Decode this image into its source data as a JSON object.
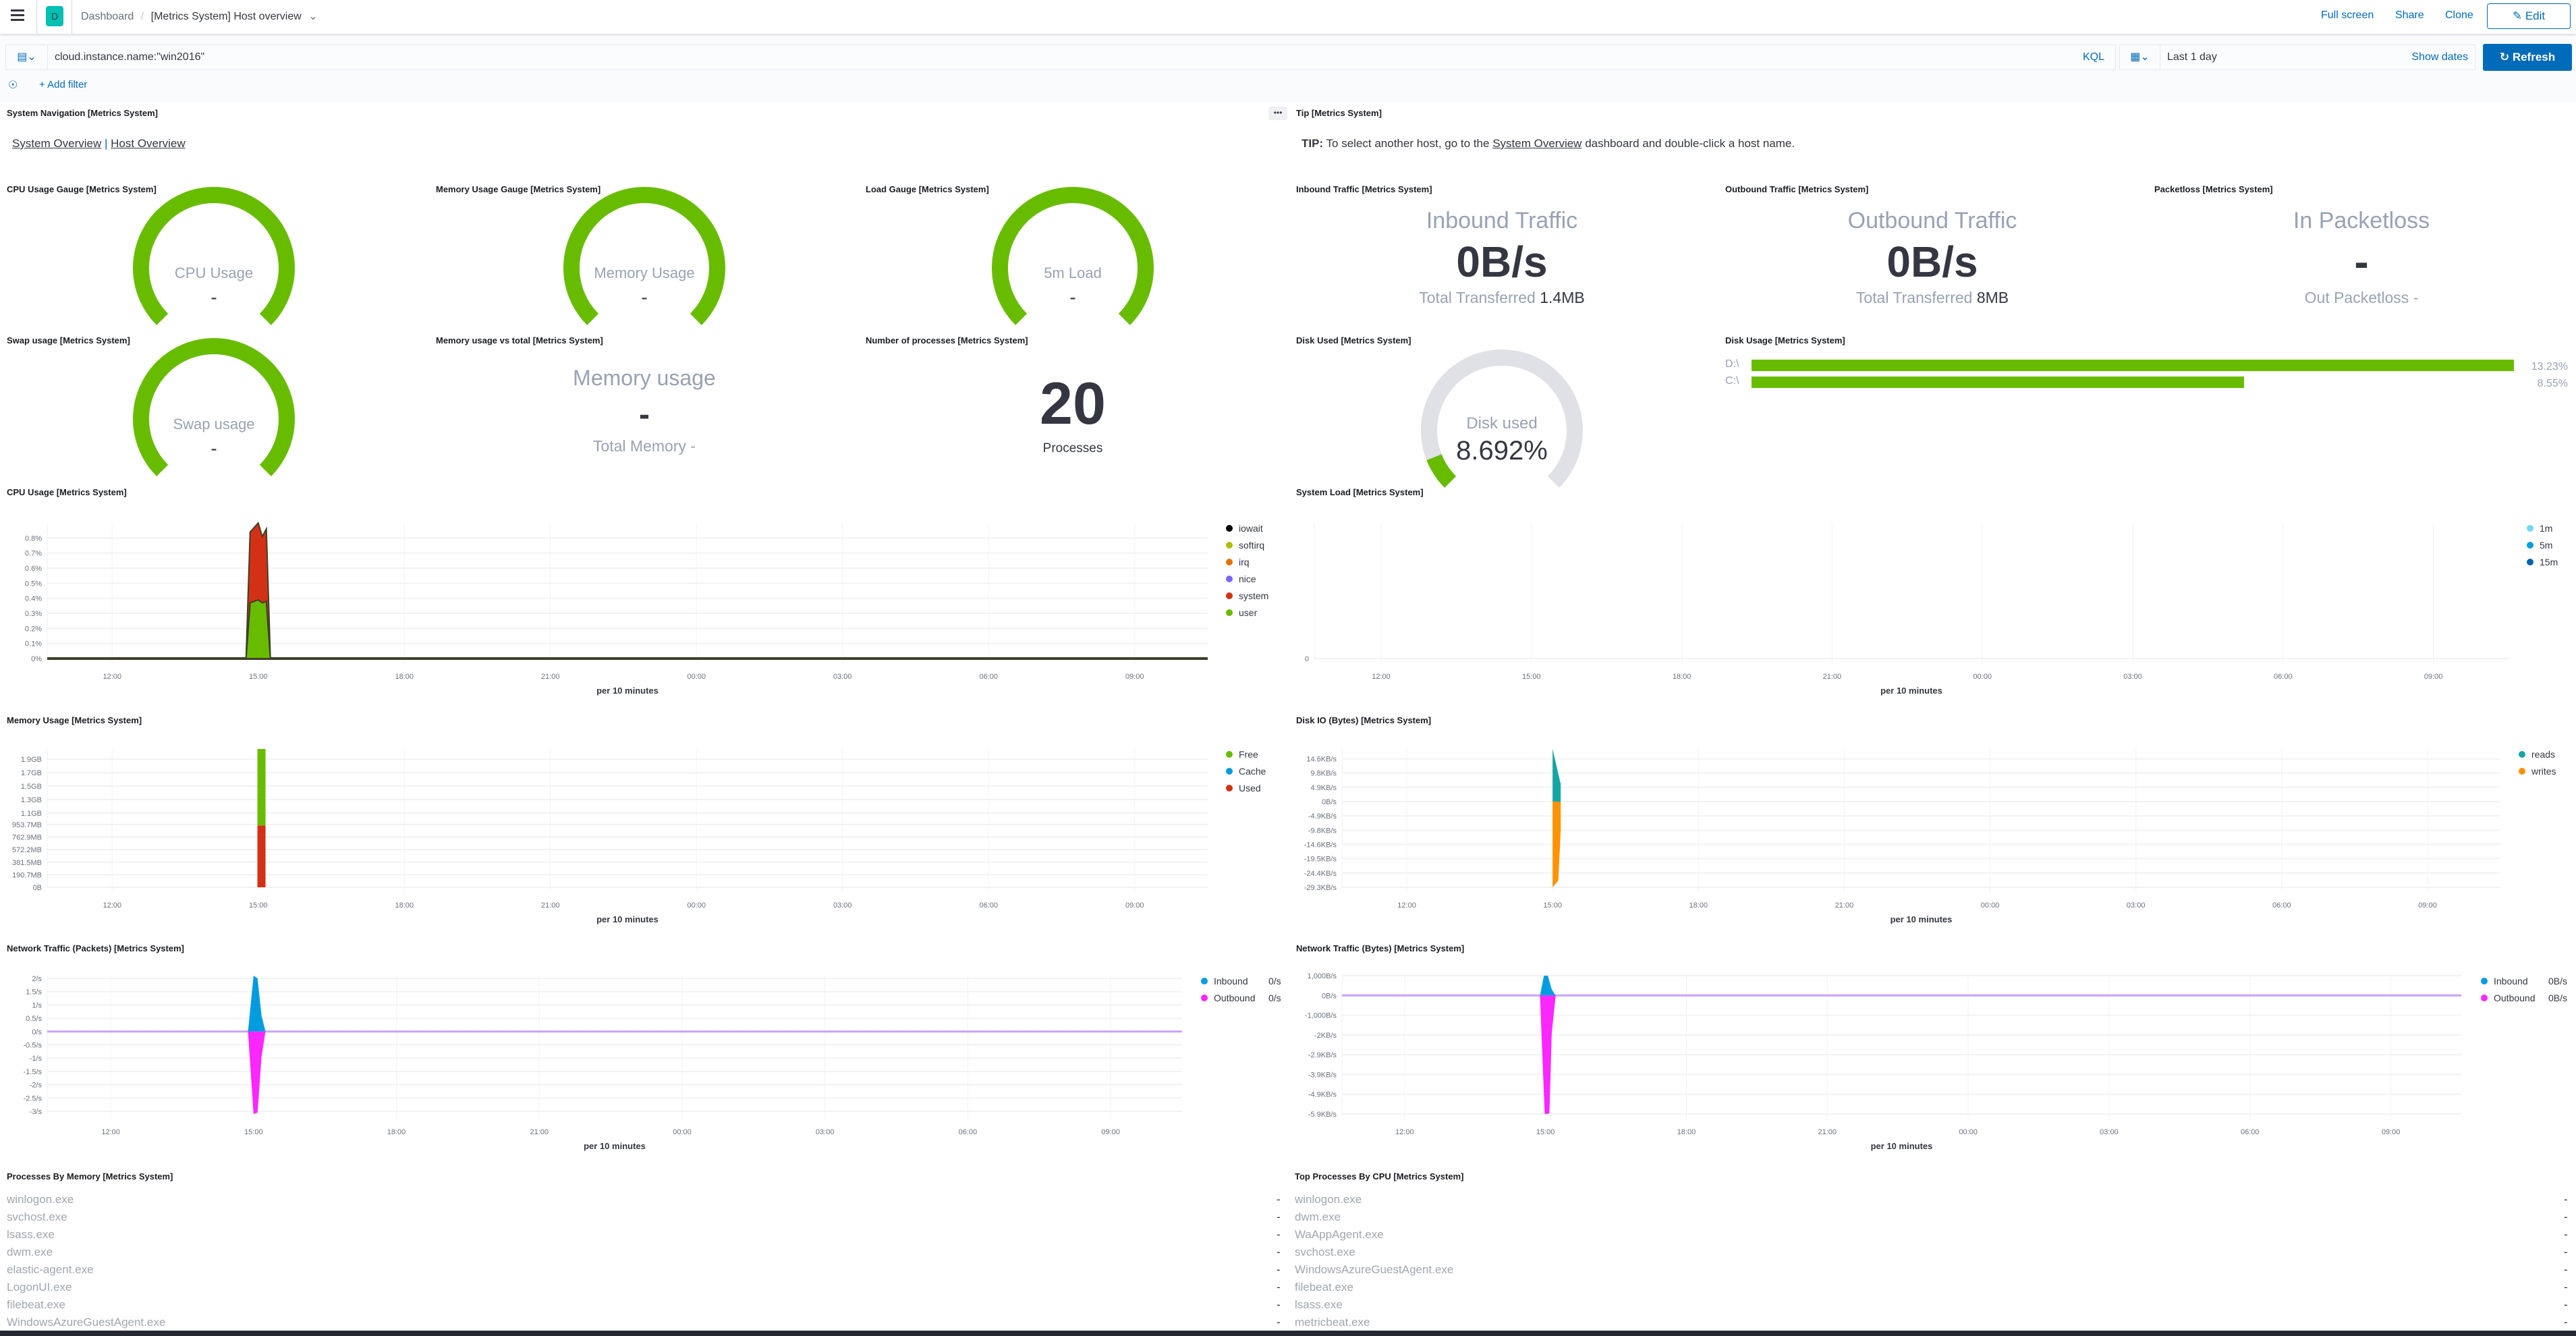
{
  "header": {
    "badge": "D",
    "breadcrumb_root": "Dashboard",
    "breadcrumb_current": "[Metrics System] Host overview",
    "full_screen": "Full screen",
    "share": "Share",
    "clone": "Clone",
    "edit": "Edit"
  },
  "query": {
    "value": "cloud.instance.name:\"win2016\"",
    "language": "KQL",
    "time_range": "Last 1 day",
    "show_dates": "Show dates",
    "refresh": "Refresh",
    "add_filter": "+ Add filter"
  },
  "panels": {
    "nav": {
      "title": "System Navigation [Metrics System]",
      "link1": "System Overview",
      "link2": "Host Overview"
    },
    "tip": {
      "title": "Tip [Metrics System]",
      "prefix": "TIP:",
      "text1": "To select another host, go to the",
      "link": "System Overview",
      "text2": "dashboard and double-click a host name."
    },
    "cpu_gauge": {
      "title": "CPU Usage Gauge [Metrics System]",
      "label": "CPU Usage",
      "value": "-",
      "fill_fraction": 1
    },
    "mem_gauge": {
      "title": "Memory Usage Gauge [Metrics System]",
      "label": "Memory Usage",
      "value": "-",
      "fill_fraction": 1
    },
    "load_gauge": {
      "title": "Load Gauge [Metrics System]",
      "label": "5m Load",
      "value": "-",
      "fill_fraction": 1
    },
    "swap_gauge": {
      "title": "Swap usage [Metrics System]",
      "label": "Swap usage",
      "value": "-",
      "fill_fraction": 1
    },
    "mem_total": {
      "title": "Memory usage vs total [Metrics System]",
      "label": "Memory usage",
      "value": "-",
      "sub": "Total Memory -"
    },
    "procs": {
      "title": "Number of processes [Metrics System]",
      "value": "20",
      "label": "Processes"
    },
    "inbound": {
      "title": "Inbound Traffic [Metrics System]",
      "label": "Inbound Traffic",
      "value": "0B/s",
      "sub_label": "Total Transferred",
      "sub_value": "1.4MB"
    },
    "outbound": {
      "title": "Outbound Traffic [Metrics System]",
      "label": "Outbound Traffic",
      "value": "0B/s",
      "sub_label": "Total Transferred",
      "sub_value": "8MB"
    },
    "packetloss": {
      "title": "Packetloss [Metrics System]",
      "label": "In Packetloss",
      "value": "-",
      "sub": "Out Packetloss -"
    },
    "disk_used": {
      "title": "Disk Used [Metrics System]",
      "label": "Disk used",
      "value": "8.692%",
      "fill_fraction": 0.08692
    },
    "disk_usage": {
      "title": "Disk Usage [Metrics System]",
      "bars": [
        {
          "label": "D:\\",
          "value": 13.23,
          "text": "13.23%"
        },
        {
          "label": "C:\\",
          "value": 8.55,
          "text": "8.55%"
        }
      ]
    },
    "cpu_usage": {
      "title": "CPU Usage [Metrics System]"
    },
    "system_load": {
      "title": "System Load [Metrics System]"
    },
    "memory_usage": {
      "title": "Memory Usage [Metrics System]"
    },
    "disk_io": {
      "title": "Disk IO (Bytes) [Metrics System]"
    },
    "net_packets": {
      "title": "Network Traffic (Packets) [Metrics System]"
    },
    "net_bytes": {
      "title": "Network Traffic (Bytes) [Metrics System]"
    },
    "proc_mem": {
      "title": "Processes By Memory [Metrics System]",
      "rows": [
        {
          "name": "winlogon.exe",
          "value": "-"
        },
        {
          "name": "svchost.exe",
          "value": "-"
        },
        {
          "name": "lsass.exe",
          "value": "-"
        },
        {
          "name": "dwm.exe",
          "value": "-"
        },
        {
          "name": "elastic-agent.exe",
          "value": "-"
        },
        {
          "name": "LogonUI.exe",
          "value": "-"
        },
        {
          "name": "filebeat.exe",
          "value": "-"
        },
        {
          "name": "WindowsAzureGuestAgent.exe",
          "value": "-"
        }
      ]
    },
    "proc_cpu": {
      "title": "Top Processes By CPU [Metrics System]",
      "rows": [
        {
          "name": "winlogon.exe",
          "value": "-"
        },
        {
          "name": "dwm.exe",
          "value": "-"
        },
        {
          "name": "WaAppAgent.exe",
          "value": "-"
        },
        {
          "name": "svchost.exe",
          "value": "-"
        },
        {
          "name": "WindowsAzureGuestAgent.exe",
          "value": "-"
        },
        {
          "name": "filebeat.exe",
          "value": "-"
        },
        {
          "name": "lsass.exe",
          "value": "-"
        },
        {
          "name": "metricbeat.exe",
          "value": "-"
        }
      ]
    }
  },
  "colors": {
    "accent": "#006bb8",
    "gauge_green": "#68bc00",
    "gauge_track": "#e0e1e6",
    "badge": "#00bfb3"
  },
  "chart_data": [
    {
      "type": "area",
      "panel": "cpu_usage",
      "stacked": true,
      "x_range": [
        "10:40",
        "10:30"
      ],
      "x_ticks": [
        "12:00",
        "15:00",
        "18:00",
        "21:00",
        "00:00",
        "03:00",
        "06:00",
        "09:00"
      ],
      "xlabel": "per 10 minutes",
      "ylim": [
        0,
        0.9
      ],
      "y_ticks": [
        {
          "value": 0,
          "label": "0%"
        },
        {
          "value": 0.1,
          "label": "0.1%"
        },
        {
          "value": 0.2,
          "label": "0.2%"
        },
        {
          "value": 0.3,
          "label": "0.3%"
        },
        {
          "value": 0.4,
          "label": "0.4%"
        },
        {
          "value": 0.5,
          "label": "0.5%"
        },
        {
          "value": 0.6,
          "label": "0.6%"
        },
        {
          "value": 0.7,
          "label": "0.7%"
        },
        {
          "value": 0.8,
          "label": "0.8%"
        }
      ],
      "legend": "right",
      "series": [
        {
          "name": "user",
          "color": "#68bc00",
          "points": [
            [
              "14:45",
              0
            ],
            [
              "14:50",
              0.37
            ],
            [
              "15:00",
              0.39
            ],
            [
              "15:05",
              0.37
            ],
            [
              "15:10",
              0.38
            ],
            [
              "15:15",
              0
            ]
          ]
        },
        {
          "name": "system",
          "color": "#d33115",
          "points": [
            [
              "14:45",
              0
            ],
            [
              "14:50",
              0.47
            ],
            [
              "15:00",
              0.51
            ],
            [
              "15:05",
              0.44
            ],
            [
              "15:10",
              0.48
            ],
            [
              "15:15",
              0
            ]
          ]
        },
        {
          "name": "nice",
          "color": "#7b64ff",
          "points": []
        },
        {
          "name": "irq",
          "color": "#e27300",
          "points": []
        },
        {
          "name": "softirq",
          "color": "#b0bc00",
          "points": []
        },
        {
          "name": "iowait",
          "color": "#000000",
          "points": []
        }
      ],
      "legend_order": [
        "iowait",
        "softirq",
        "irq",
        "nice",
        "system",
        "user"
      ]
    },
    {
      "type": "area",
      "panel": "system_load",
      "x_range": [
        "10:40",
        "10:30"
      ],
      "x_ticks": [
        "12:00",
        "15:00",
        "18:00",
        "21:00",
        "00:00",
        "03:00",
        "06:00",
        "09:00"
      ],
      "xlabel": "per 10 minutes",
      "ylim": [
        0,
        1
      ],
      "y_ticks": [
        {
          "value": 0,
          "label": "0"
        }
      ],
      "legend": "right",
      "series": [
        {
          "name": "1m",
          "color": "#73d8ff",
          "points": []
        },
        {
          "name": "5m",
          "color": "#009ce0",
          "points": []
        },
        {
          "name": "15m",
          "color": "#0062b1",
          "points": []
        }
      ]
    },
    {
      "type": "bar",
      "panel": "memory_usage",
      "stacked": true,
      "x_range": [
        "10:40",
        "10:30"
      ],
      "x_ticks": [
        "12:00",
        "15:00",
        "18:00",
        "21:00",
        "00:00",
        "03:00",
        "06:00",
        "09:00"
      ],
      "xlabel": "per 10 minutes",
      "ylim": [
        0,
        2100
      ],
      "y_ticks": [
        {
          "value": 0,
          "label": "0B"
        },
        {
          "value": 190.7,
          "label": "190.7MB"
        },
        {
          "value": 381.5,
          "label": "381.5MB"
        },
        {
          "value": 572.2,
          "label": "572.2MB"
        },
        {
          "value": 762.9,
          "label": "762.9MB"
        },
        {
          "value": 953.7,
          "label": "953.7MB"
        },
        {
          "value": 1126.4,
          "label": "1.1GB"
        },
        {
          "value": 1331.2,
          "label": "1.3GB"
        },
        {
          "value": 1536,
          "label": "1.5GB"
        },
        {
          "value": 1740.8,
          "label": "1.7GB"
        },
        {
          "value": 1945.6,
          "label": "1.9GB"
        }
      ],
      "legend": "right",
      "series": [
        {
          "name": "Used",
          "color": "#d33115",
          "points": [
            [
              "14:59",
              940
            ],
            [
              "15:09",
              940
            ]
          ]
        },
        {
          "name": "Cache",
          "color": "#009ce0",
          "points": []
        },
        {
          "name": "Free",
          "color": "#68bc00",
          "points": [
            [
              "14:59",
              1160
            ],
            [
              "15:09",
              1160
            ]
          ]
        }
      ],
      "legend_order": [
        "Free",
        "Cache",
        "Used"
      ]
    },
    {
      "type": "area",
      "panel": "disk_io",
      "x_range": [
        "10:40",
        "10:30"
      ],
      "x_ticks": [
        "12:00",
        "15:00",
        "18:00",
        "21:00",
        "00:00",
        "03:00",
        "06:00",
        "09:00"
      ],
      "xlabel": "per 10 minutes",
      "ylim": [
        -29.3,
        18
      ],
      "y_ticks": [
        {
          "value": -29.3,
          "label": "-29.3KB/s"
        },
        {
          "value": -24.4,
          "label": "-24.4KB/s"
        },
        {
          "value": -19.5,
          "label": "-19.5KB/s"
        },
        {
          "value": -14.6,
          "label": "-14.6KB/s"
        },
        {
          "value": -9.8,
          "label": "-9.8KB/s"
        },
        {
          "value": -4.9,
          "label": "-4.9KB/s"
        },
        {
          "value": 0,
          "label": "0B/s"
        },
        {
          "value": 4.9,
          "label": "4.9KB/s"
        },
        {
          "value": 9.8,
          "label": "9.8KB/s"
        },
        {
          "value": 14.6,
          "label": "14.6KB/s"
        }
      ],
      "legend": "right",
      "series": [
        {
          "name": "reads",
          "color": "#16a5a5",
          "points": [
            [
              "15:00",
              18
            ],
            [
              "15:05",
              12
            ],
            [
              "15:10",
              6
            ],
            [
              "15:10",
              0
            ],
            [
              "15:00",
              0
            ]
          ]
        },
        {
          "name": "writes",
          "color": "#fe9200",
          "points": [
            [
              "15:00",
              0
            ],
            [
              "15:10",
              0
            ],
            [
              "15:10",
              -10
            ],
            [
              "15:07",
              -27
            ],
            [
              "15:00",
              -29.3
            ]
          ]
        }
      ],
      "legend_order": [
        "reads",
        "writes"
      ]
    },
    {
      "type": "area",
      "panel": "net_packets",
      "x_range": [
        "10:40",
        "10:30"
      ],
      "x_ticks": [
        "12:00",
        "15:00",
        "18:00",
        "21:00",
        "00:00",
        "03:00",
        "06:00",
        "09:00"
      ],
      "xlabel": "per 10 minutes",
      "ylim": [
        -3.1,
        2.1
      ],
      "zero_line": "#c8a2ff",
      "y_ticks": [
        {
          "value": -3,
          "label": "-3/s"
        },
        {
          "value": -2.5,
          "label": "-2.5/s"
        },
        {
          "value": -2,
          "label": "-2/s"
        },
        {
          "value": -1.5,
          "label": "-1.5/s"
        },
        {
          "value": -1,
          "label": "-1/s"
        },
        {
          "value": -0.5,
          "label": "-0.5/s"
        },
        {
          "value": 0,
          "label": "0/s"
        },
        {
          "value": 0.5,
          "label": "0.5/s"
        },
        {
          "value": 1,
          "label": "1/s"
        },
        {
          "value": 1.5,
          "label": "1.5/s"
        },
        {
          "value": 2,
          "label": "2/s"
        }
      ],
      "legend": "right",
      "series": [
        {
          "name": "Inbound",
          "color": "#009ce0",
          "legend_value": "0/s",
          "points": [
            [
              "14:53",
              0
            ],
            [
              "15:00",
              2.1
            ],
            [
              "15:05",
              2
            ],
            [
              "15:10",
              0.6
            ],
            [
              "15:15",
              0
            ]
          ]
        },
        {
          "name": "Outbound",
          "color": "#fc26ff",
          "legend_value": "0/s",
          "points": [
            [
              "14:53",
              0
            ],
            [
              "15:00",
              -3.1
            ],
            [
              "15:05",
              -3.05
            ],
            [
              "15:10",
              -0.95
            ],
            [
              "15:15",
              0
            ]
          ]
        }
      ],
      "legend_order": [
        "Inbound",
        "Outbound"
      ]
    },
    {
      "type": "area",
      "panel": "net_bytes",
      "x_range": [
        "10:40",
        "10:30"
      ],
      "x_ticks": [
        "12:00",
        "15:00",
        "18:00",
        "21:00",
        "00:00",
        "03:00",
        "06:00",
        "09:00"
      ],
      "xlabel": "per 10 minutes",
      "ylim": [
        -6000,
        1000
      ],
      "zero_line": "#c8a2ff",
      "y_ticks": [
        {
          "value": -6000,
          "label": "-5.9KB/s"
        },
        {
          "value": -5000,
          "label": "-4.9KB/s"
        },
        {
          "value": -4000,
          "label": "-3.9KB/s"
        },
        {
          "value": -3000,
          "label": "-2.9KB/s"
        },
        {
          "value": -2000,
          "label": "-2KB/s"
        },
        {
          "value": -1000,
          "label": "-1,000B/s"
        },
        {
          "value": 0,
          "label": "0B/s"
        },
        {
          "value": 1000,
          "label": "1,000B/s"
        }
      ],
      "legend": "right",
      "series": [
        {
          "name": "Inbound",
          "color": "#009ce0",
          "legend_value": "0B/s",
          "points": [
            [
              "14:53",
              0
            ],
            [
              "14:58",
              1000
            ],
            [
              "15:03",
              1000
            ],
            [
              "15:08",
              300
            ],
            [
              "15:13",
              0
            ]
          ]
        },
        {
          "name": "Outbound",
          "color": "#fc26ff",
          "legend_value": "0B/s",
          "points": [
            [
              "14:53",
              0
            ],
            [
              "14:59",
              -6000
            ],
            [
              "15:05",
              -5980
            ],
            [
              "15:08",
              -1900
            ],
            [
              "15:13",
              0
            ]
          ]
        }
      ],
      "legend_order": [
        "Inbound",
        "Outbound"
      ]
    }
  ]
}
